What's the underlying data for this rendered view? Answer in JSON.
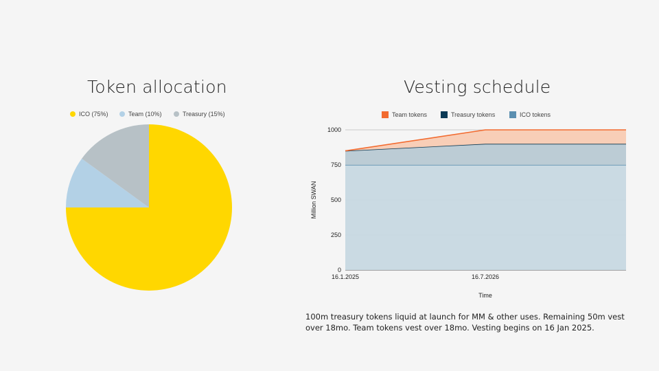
{
  "chart_data": [
    {
      "type": "pie",
      "title": "Token allocation",
      "slices": [
        {
          "label": "ICO (75%)",
          "value": 75,
          "color": "#ffd700"
        },
        {
          "label": "Team (10%)",
          "value": 10,
          "color": "#b3d1e6"
        },
        {
          "label": "Treasury (15%)",
          "value": 15,
          "color": "#b7c1c6"
        }
      ]
    },
    {
      "type": "area",
      "title": "Vesting schedule",
      "xlabel": "Time",
      "ylabel": "Million SWAN",
      "x_ticks": [
        "16.1.2025",
        "16.7.2026"
      ],
      "y_ticks": [
        0,
        250,
        500,
        750,
        1000
      ],
      "ylim": [
        0,
        1000
      ],
      "x": [
        "16.1.2025",
        "16.7.2026",
        "end"
      ],
      "series": [
        {
          "name": "ICO tokens",
          "values": [
            750,
            750,
            750
          ],
          "color": "#5b8fb0"
        },
        {
          "name": "Treasury tokens",
          "values": [
            100,
            150,
            150
          ],
          "color": "#0b3a56"
        },
        {
          "name": "Team tokens",
          "values": [
            0,
            100,
            100
          ],
          "color": "#f26b30"
        }
      ]
    }
  ],
  "note": "100m treasury tokens liquid at launch for MM & other uses. Remaining 50m vest over 18mo. Team tokens vest over 18mo. Vesting begins on 16 Jan 2025."
}
